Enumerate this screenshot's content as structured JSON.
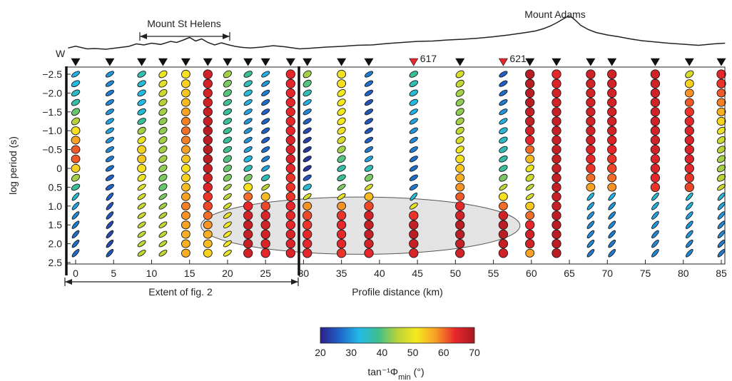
{
  "chart_data": {
    "type": "scatter",
    "subtype": "phase-tensor-ellipse-pseudosection",
    "ylabel": "log period (s)",
    "xlabel": "Profile distance (km)",
    "xlim": [
      -1.5,
      85.5
    ],
    "ylim": [
      -2.75,
      2.5
    ],
    "y_inverted": true,
    "x_ticks": [
      0,
      5,
      10,
      15,
      20,
      25,
      30,
      35,
      40,
      45,
      50,
      55,
      60,
      65,
      70,
      75,
      80,
      85
    ],
    "y_ticks": [
      -2.5,
      -2.0,
      -1.5,
      -1.0,
      -0.5,
      0,
      0.5,
      1.0,
      1.5,
      2.0,
      2.5
    ],
    "y_tick_labels": [
      "−2.5",
      "−2.0",
      "−1.5",
      "−1.0",
      "−0.5",
      "0",
      "0.5",
      "1.0",
      "1.5",
      "2.0",
      "2.5"
    ],
    "periods": [
      -2.5,
      -2.25,
      -2.0,
      -1.75,
      -1.5,
      -1.25,
      -1.0,
      -0.75,
      -0.5,
      -0.25,
      0,
      0.25,
      0.5,
      0.75,
      1.0,
      1.25,
      1.5,
      1.75,
      2.0,
      2.25
    ],
    "colorbar": {
      "min": 20,
      "max": 70,
      "ticks": [
        "20",
        "30",
        "40",
        "50",
        "60",
        "70"
      ],
      "label": "tan⁻¹Φ",
      "label_sub": "min",
      "label_unit": " (°)",
      "colors": [
        "#2b1f8a",
        "#1e64c8",
        "#22b8e8",
        "#3cbf8f",
        "#b8d23a",
        "#f6e91e",
        "#f89c25",
        "#e8262b",
        "#a51a20"
      ]
    },
    "stations": [
      {
        "x": 0.0,
        "phase": [
          32,
          33,
          35,
          37,
          41,
          45,
          52,
          57,
          61,
          61,
          53,
          44,
          38,
          34,
          31,
          29,
          28,
          27,
          27,
          27
        ]
      },
      {
        "x": 4.5,
        "phase": [
          30,
          29,
          28,
          29,
          30,
          31,
          31,
          30,
          29,
          28,
          27,
          26,
          26,
          26,
          25,
          25,
          24,
          24,
          24,
          25
        ]
      },
      {
        "x": 8.7,
        "phase": [
          36,
          34,
          33,
          33,
          34,
          38,
          44,
          50,
          53,
          54,
          52,
          50,
          49,
          48,
          47,
          47,
          46,
          46,
          46,
          46
        ]
      },
      {
        "x": 11.5,
        "phase": [
          50,
          49,
          47,
          45,
          44,
          43,
          43,
          44,
          44,
          44,
          43,
          42,
          41,
          42,
          44,
          45,
          46,
          46,
          46,
          46
        ]
      },
      {
        "x": 14.5,
        "phase": [
          52,
          53,
          54,
          55,
          57,
          59,
          60,
          59,
          57,
          54,
          52,
          53,
          55,
          57,
          59,
          58,
          57,
          56,
          56,
          56
        ]
      },
      {
        "x": 17.4,
        "phase": [
          66,
          66,
          66,
          66,
          67,
          67,
          68,
          68,
          68,
          68,
          67,
          66,
          65,
          63,
          62,
          60,
          58,
          56,
          55,
          53
        ]
      },
      {
        "x": 20.0,
        "phase": [
          44,
          42,
          40,
          39,
          38,
          38,
          38,
          38,
          39,
          40,
          41,
          42,
          44,
          46,
          48,
          50,
          51,
          51,
          51,
          50
        ]
      },
      {
        "x": 22.7,
        "phase": [
          38,
          36,
          34,
          32,
          31,
          30,
          30,
          30,
          31,
          33,
          36,
          42,
          52,
          60,
          64,
          66,
          67,
          67,
          67,
          66
        ]
      },
      {
        "x": 25.0,
        "phase": [
          32,
          30,
          28,
          27,
          26,
          26,
          26,
          26,
          27,
          28,
          31,
          36,
          45,
          55,
          62,
          65,
          66,
          66,
          65,
          64
        ]
      },
      {
        "x": 28.3,
        "phase": [
          64,
          64,
          64,
          64,
          64,
          64,
          64,
          65,
          65,
          65,
          64,
          63,
          63,
          63,
          64,
          64,
          64,
          65,
          65,
          65
        ]
      },
      {
        "x": 30.5,
        "phase": [
          44,
          40,
          36,
          32,
          29,
          26,
          24,
          23,
          22,
          22,
          22,
          25,
          34,
          48,
          58,
          62,
          63,
          64,
          64,
          64
        ]
      },
      {
        "x": 35.0,
        "phase": [
          52,
          52,
          51,
          51,
          51,
          51,
          50,
          48,
          44,
          40,
          37,
          38,
          42,
          50,
          58,
          63,
          64,
          64,
          64,
          63
        ]
      },
      {
        "x": 38.6,
        "phase": [
          28,
          27,
          26,
          25,
          25,
          25,
          25,
          26,
          28,
          31,
          36,
          42,
          48,
          55,
          62,
          66,
          67,
          67,
          66,
          64
        ]
      },
      {
        "x": 44.5,
        "phase": [
          38,
          36,
          34,
          33,
          32,
          31,
          30,
          29,
          28,
          27,
          27,
          27,
          28,
          34,
          50,
          63,
          67,
          68,
          67,
          65
        ]
      },
      {
        "x": 50.6,
        "phase": [
          48,
          46,
          44,
          43,
          43,
          44,
          46,
          48,
          50,
          52,
          54,
          56,
          58,
          61,
          64,
          66,
          68,
          68,
          67,
          66
        ]
      },
      {
        "x": 56.3,
        "phase": [
          26,
          26,
          27,
          28,
          30,
          32,
          34,
          35,
          36,
          37,
          38,
          42,
          46,
          52,
          60,
          66,
          68,
          68,
          67,
          66
        ]
      },
      {
        "x": 59.8,
        "phase": [
          68,
          68,
          68,
          68,
          67,
          67,
          66,
          64,
          60,
          55,
          50,
          47,
          46,
          48,
          54,
          60,
          64,
          66,
          66,
          57
        ]
      },
      {
        "x": 63.3,
        "phase": [
          64,
          65,
          66,
          66,
          67,
          67,
          67,
          67,
          67,
          67,
          67,
          67,
          67,
          67,
          67,
          68,
          68,
          68,
          68,
          68
        ]
      },
      {
        "x": 67.8,
        "phase": [
          66,
          66,
          66,
          66,
          66,
          66,
          66,
          66,
          65,
          64,
          63,
          60,
          57,
          33,
          31,
          30,
          29,
          29,
          29,
          28
        ]
      },
      {
        "x": 70.6,
        "phase": [
          66,
          66,
          66,
          66,
          66,
          66,
          66,
          65,
          64,
          63,
          62,
          60,
          58,
          32,
          30,
          29,
          29,
          28,
          28,
          28
        ]
      },
      {
        "x": 76.3,
        "phase": [
          66,
          66,
          66,
          66,
          66,
          66,
          66,
          66,
          66,
          65,
          65,
          64,
          63,
          34,
          32,
          31,
          30,
          29,
          29,
          29
        ]
      },
      {
        "x": 80.8,
        "phase": [
          48,
          53,
          58,
          61,
          63,
          64,
          65,
          65,
          65,
          65,
          64,
          63,
          62,
          34,
          32,
          31,
          30,
          30,
          29,
          29
        ]
      },
      {
        "x": 85.0,
        "phase": [
          64,
          63,
          61,
          59,
          56,
          53,
          50,
          47,
          45,
          44,
          44,
          45,
          47,
          34,
          31,
          30,
          29,
          29,
          28,
          28
        ]
      }
    ],
    "station_markers": [
      {
        "x": 0.0
      },
      {
        "x": 4.5
      },
      {
        "x": 8.7
      },
      {
        "x": 11.5
      },
      {
        "x": 14.5
      },
      {
        "x": 17.4
      },
      {
        "x": 20.0
      },
      {
        "x": 22.7
      },
      {
        "x": 25.0
      },
      {
        "x": 28.3
      },
      {
        "x": 30.5
      },
      {
        "x": 35.0
      },
      {
        "x": 38.6
      },
      {
        "x": 44.5,
        "color": "#e8262b",
        "label": "617"
      },
      {
        "x": 50.6
      },
      {
        "x": 56.3,
        "color": "#e8262b",
        "label": "621"
      },
      {
        "x": 59.8
      },
      {
        "x": 63.3
      },
      {
        "x": 67.8
      },
      {
        "x": 70.6
      },
      {
        "x": 76.3
      },
      {
        "x": 80.8
      },
      {
        "x": 85.0
      }
    ],
    "topography": [
      [
        -1.0,
        0.35
      ],
      [
        0.0,
        0.45
      ],
      [
        1.5,
        0.3
      ],
      [
        2.5,
        0.32
      ],
      [
        4.0,
        0.28
      ],
      [
        5.5,
        0.36
      ],
      [
        7.0,
        0.44
      ],
      [
        8.0,
        0.58
      ],
      [
        9.0,
        0.52
      ],
      [
        10.0,
        0.62
      ],
      [
        11.2,
        0.55
      ],
      [
        12.5,
        0.72
      ],
      [
        13.3,
        0.66
      ],
      [
        14.2,
        0.8
      ],
      [
        15.0,
        0.94
      ],
      [
        15.8,
        0.74
      ],
      [
        16.6,
        0.86
      ],
      [
        17.4,
        0.66
      ],
      [
        18.3,
        0.52
      ],
      [
        19.2,
        0.64
      ],
      [
        20.0,
        0.54
      ],
      [
        21.0,
        0.44
      ],
      [
        22.0,
        0.38
      ],
      [
        23.0,
        0.35
      ],
      [
        24.5,
        0.4
      ],
      [
        26.0,
        0.48
      ],
      [
        27.5,
        0.42
      ],
      [
        28.5,
        0.36
      ],
      [
        29.5,
        0.3
      ],
      [
        31.0,
        0.34
      ],
      [
        33.0,
        0.4
      ],
      [
        35.0,
        0.44
      ],
      [
        37.0,
        0.5
      ],
      [
        39.0,
        0.52
      ],
      [
        41.0,
        0.6
      ],
      [
        43.0,
        0.66
      ],
      [
        45.0,
        0.72
      ],
      [
        47.0,
        0.74
      ],
      [
        49.0,
        0.8
      ],
      [
        51.0,
        0.84
      ],
      [
        53.0,
        0.9
      ],
      [
        55.0,
        0.98
      ],
      [
        57.0,
        1.08
      ],
      [
        59.0,
        1.2
      ],
      [
        60.5,
        1.3
      ],
      [
        61.5,
        1.42
      ],
      [
        62.5,
        1.58
      ],
      [
        63.4,
        1.78
      ],
      [
        64.2,
        1.98
      ],
      [
        64.8,
        2.12
      ],
      [
        65.3,
        2.08
      ],
      [
        65.8,
        1.9
      ],
      [
        66.5,
        1.62
      ],
      [
        67.5,
        1.38
      ],
      [
        68.5,
        1.22
      ],
      [
        70.0,
        1.08
      ],
      [
        71.5,
        0.98
      ],
      [
        73.0,
        0.86
      ],
      [
        74.5,
        0.76
      ],
      [
        76.0,
        0.7
      ],
      [
        78.0,
        0.62
      ],
      [
        80.0,
        0.56
      ],
      [
        82.0,
        0.5
      ],
      [
        84.0,
        0.58
      ],
      [
        85.5,
        0.62
      ]
    ],
    "highlight_ellipse": {
      "x_center": 37.5,
      "y_center": 1.52,
      "x_radius": 21.0,
      "y_radius": 0.76
    }
  },
  "annotations": {
    "w_label": "W",
    "mount_st_helens": "Mount St Helens",
    "mount_adams": "Mount Adams",
    "extent_label": "Extent of fig. 2"
  }
}
